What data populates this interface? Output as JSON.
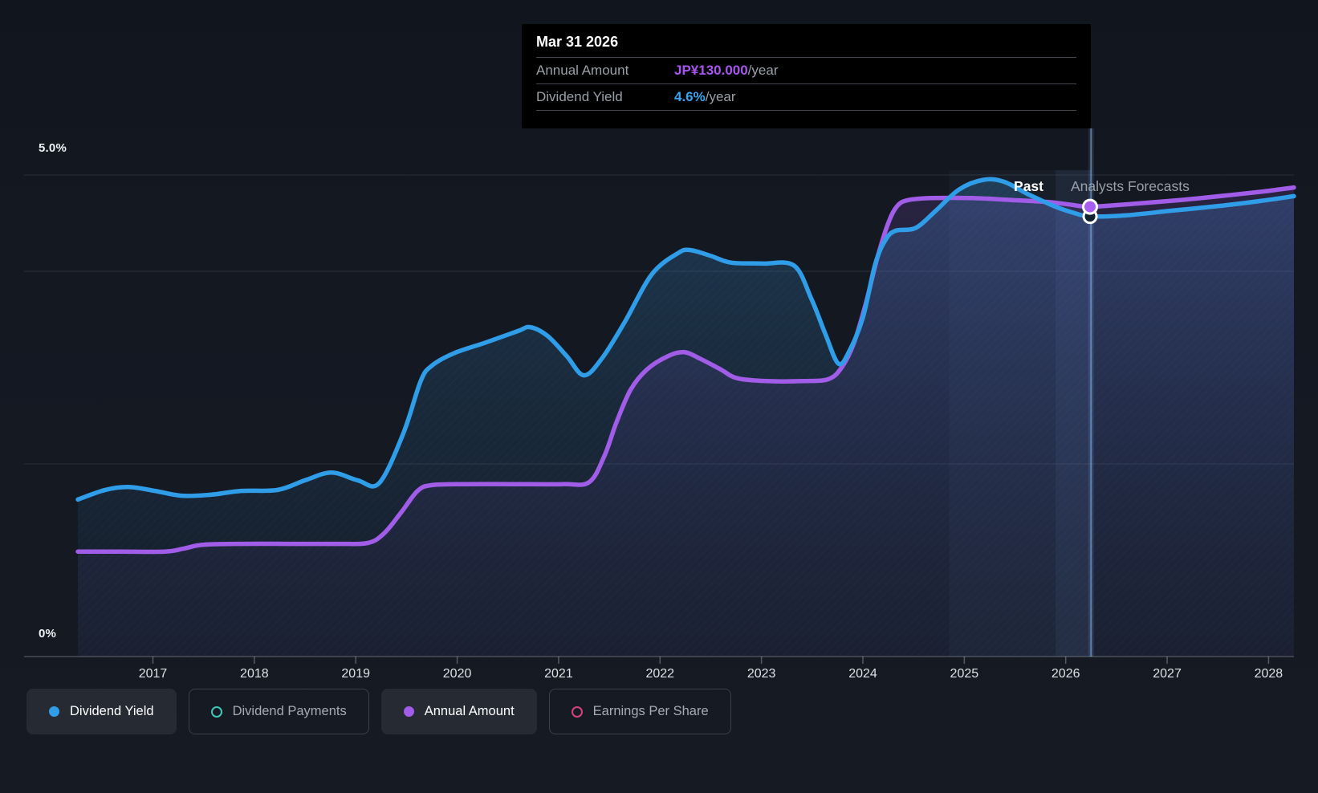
{
  "tooltip": {
    "title": "Mar 31 2026",
    "rows": [
      {
        "label": "Annual Amount",
        "value": "JP¥130.000",
        "suffix": "/year",
        "color": "#a855f0"
      },
      {
        "label": "Dividend Yield",
        "value": "4.6%",
        "suffix": "/year",
        "color": "#38a5f0"
      }
    ]
  },
  "labels": {
    "past": "Past",
    "forecast": "Analysts Forecasts",
    "y_top": "5.0%",
    "y_zero": "0%"
  },
  "legend": [
    {
      "label": "Dividend Yield",
      "color": "#2f9de8",
      "style": "filled",
      "active": true
    },
    {
      "label": "Dividend Payments",
      "color": "#41c7ba",
      "style": "hollow",
      "active": false
    },
    {
      "label": "Annual Amount",
      "color": "#a15ce8",
      "style": "filled",
      "active": true
    },
    {
      "label": "Earnings Per Share",
      "color": "#d6437f",
      "style": "hollow",
      "active": false
    }
  ],
  "chart_data": {
    "type": "area",
    "title": "Dividend history and forecast",
    "x_axis": {
      "ticks": [
        2017,
        2018,
        2019,
        2020,
        2021,
        2022,
        2023,
        2024,
        2025,
        2026,
        2027,
        2028
      ],
      "range": [
        2016.26,
        2028.25
      ]
    },
    "y_axis": {
      "unit": "%",
      "range": [
        0,
        5
      ],
      "gridline_values": [
        5,
        4,
        2
      ],
      "top_label": "5.0%",
      "zero_label": "0%"
    },
    "divider_year": 2026.25,
    "highlight_band": {
      "from_year": 2016.26,
      "inner_from_year": 2025.9,
      "note_band_start_year": 2024.85
    },
    "series": [
      {
        "name": "Dividend Yield",
        "color": "#2f9de8",
        "x": [
          2016.26,
          2016.53,
          2016.76,
          2017.02,
          2017.28,
          2017.57,
          2017.87,
          2018.23,
          2018.5,
          2018.76,
          2019.02,
          2019.23,
          2019.47,
          2019.64,
          2019.75,
          2019.97,
          2020.28,
          2020.6,
          2020.72,
          2020.89,
          2021.08,
          2021.25,
          2021.43,
          2021.65,
          2021.92,
          2022.18,
          2022.3,
          2022.5,
          2022.7,
          2023.01,
          2023.32,
          2023.49,
          2023.63,
          2023.76,
          2023.87,
          2024.0,
          2024.12,
          2024.22,
          2024.32,
          2024.52,
          2024.72,
          2024.95,
          2025.19,
          2025.39,
          2025.63,
          2025.9,
          2026.1,
          2026.24,
          2026.58,
          2027.05,
          2027.53,
          2027.92,
          2028.25
        ],
        "values": [
          1.63,
          1.73,
          1.76,
          1.72,
          1.67,
          1.68,
          1.72,
          1.73,
          1.83,
          1.91,
          1.83,
          1.8,
          2.32,
          2.86,
          3.02,
          3.15,
          3.26,
          3.38,
          3.42,
          3.33,
          3.12,
          2.92,
          3.1,
          3.47,
          3.97,
          4.19,
          4.22,
          4.16,
          4.09,
          4.08,
          4.06,
          3.72,
          3.35,
          3.04,
          3.18,
          3.52,
          4.07,
          4.32,
          4.42,
          4.45,
          4.63,
          4.85,
          4.95,
          4.93,
          4.8,
          4.67,
          4.6,
          4.57,
          4.58,
          4.63,
          4.68,
          4.73,
          4.78
        ]
      },
      {
        "name": "Annual Amount",
        "color": "#a15ce8",
        "x": [
          2016.26,
          2016.68,
          2017.12,
          2017.3,
          2017.49,
          2017.87,
          2018.35,
          2018.82,
          2019.12,
          2019.28,
          2019.45,
          2019.61,
          2019.75,
          2020.09,
          2020.56,
          2021.04,
          2021.3,
          2021.45,
          2021.57,
          2021.71,
          2021.87,
          2022.08,
          2022.24,
          2022.4,
          2022.6,
          2022.76,
          2023.05,
          2023.41,
          2023.66,
          2023.79,
          2023.91,
          2024.03,
          2024.14,
          2024.25,
          2024.34,
          2024.45,
          2024.68,
          2025.07,
          2025.47,
          2025.82,
          2026.06,
          2026.24,
          2026.66,
          2027.13,
          2027.61,
          2027.96,
          2028.25
        ],
        "values": [
          1.09,
          1.09,
          1.09,
          1.12,
          1.16,
          1.17,
          1.17,
          1.17,
          1.18,
          1.28,
          1.5,
          1.72,
          1.78,
          1.79,
          1.79,
          1.79,
          1.81,
          2.08,
          2.43,
          2.77,
          2.98,
          3.12,
          3.16,
          3.09,
          2.98,
          2.89,
          2.86,
          2.86,
          2.88,
          3.0,
          3.25,
          3.67,
          4.13,
          4.5,
          4.68,
          4.74,
          4.76,
          4.76,
          4.74,
          4.72,
          4.69,
          4.67,
          4.7,
          4.74,
          4.79,
          4.83,
          4.87
        ]
      }
    ],
    "markers": [
      {
        "series": "Dividend Yield",
        "year": 2026.24,
        "value": 4.57,
        "style": "ring"
      },
      {
        "series": "Annual Amount",
        "year": 2026.24,
        "value": 4.67,
        "style": "filled"
      }
    ]
  }
}
